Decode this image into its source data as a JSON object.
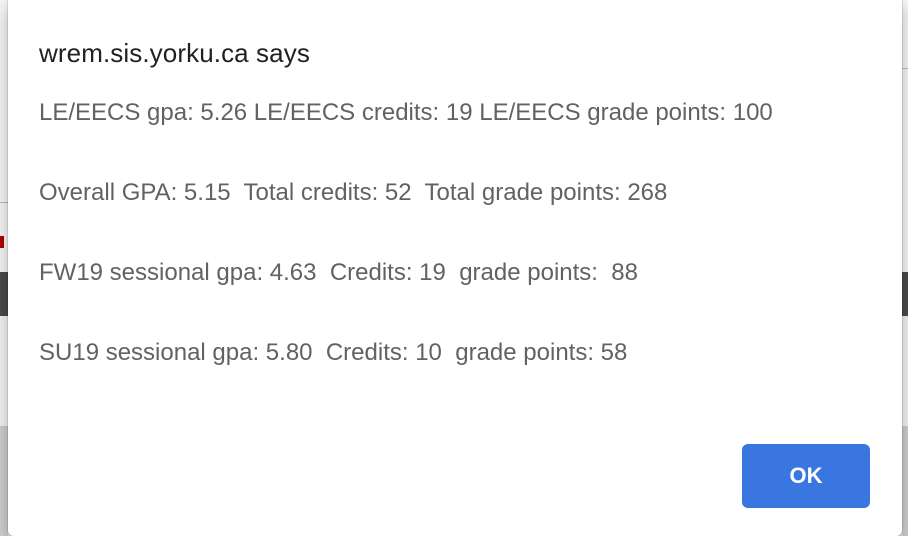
{
  "dialog": {
    "title": "wrem.sis.yorku.ca says",
    "message_lines": [
      "LE/EECS gpa: 5.26 LE/EECS credits: 19 LE/EECS grade points: 100",
      "Overall GPA: 5.15  Total credits: 52  Total grade points: 268",
      "FW19 sessional gpa: 4.63  Credits: 19  grade points:  88",
      "SU19 sessional gpa: 5.80  Credits: 10  grade points: 58"
    ],
    "ok_label": "OK"
  },
  "colors": {
    "button_bg": "#3a76e0",
    "title_text": "#202124",
    "message_text": "#5f6368"
  }
}
